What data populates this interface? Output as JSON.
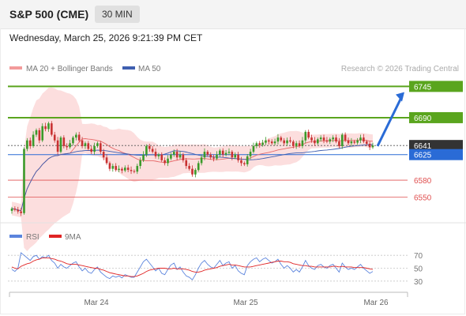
{
  "header": {
    "symbol": "S&P 500 (CME)",
    "timeframe": "30 MIN",
    "datetime": "Wednesday, March 25, 2026 9:21:39 PM CET"
  },
  "legend": {
    "ma20_bb": "MA 20 + Bollinger Bands",
    "ma50": "MA 50",
    "source": "Research © 2026 Trading Central",
    "rsi": "RSI",
    "rsi_ma": "9MA"
  },
  "colors": {
    "resistance": "#5aa51e",
    "support": "#e05050",
    "current": "#2a6bd6",
    "candle_up": "#3a9a2a",
    "candle_down": "#c83232",
    "bollinger": "#fbd3d3",
    "ma20": "#e66a6a",
    "ma50": "#3f5fb0",
    "rsi": "#5b84dd",
    "rsi_ma": "#e02424",
    "last_price_bg": "#333333"
  },
  "chart_data": {
    "type": "candlestick",
    "ylim": [
      6505,
      6765
    ],
    "price_levels": [
      {
        "label": "6745",
        "value": 6745,
        "kind": "resistance"
      },
      {
        "label": "6690",
        "value": 6690,
        "kind": "resistance"
      },
      {
        "label": "6641",
        "value": 6641,
        "kind": "last"
      },
      {
        "label": "6625",
        "value": 6625,
        "kind": "current"
      },
      {
        "label": "6580",
        "value": 6580,
        "kind": "support"
      },
      {
        "label": "6550",
        "value": 6550,
        "kind": "support"
      }
    ],
    "x_ticks": [
      "Mar 24",
      "Mar 25",
      "Mar 26"
    ],
    "arrow": {
      "from": 6640,
      "to": 6735,
      "direction": "up"
    },
    "candles_close": [
      6530,
      6528,
      6525,
      6522,
      6635,
      6650,
      6640,
      6660,
      6668,
      6650,
      6675,
      6670,
      6680,
      6660,
      6650,
      6630,
      6655,
      6640,
      6638,
      6645,
      6655,
      6660,
      6650,
      6640,
      6645,
      6635,
      6630,
      6640,
      6645,
      6630,
      6620,
      6610,
      6600,
      6605,
      6598,
      6600,
      6597,
      6602,
      6598,
      6596,
      6595,
      6605,
      6615,
      6625,
      6640,
      6635,
      6630,
      6622,
      6625,
      6615,
      6610,
      6618,
      6625,
      6630,
      6620,
      6625,
      6615,
      6605,
      6600,
      6590,
      6598,
      6610,
      6620,
      6630,
      6625,
      6620,
      6618,
      6625,
      6632,
      6625,
      6628,
      6630,
      6620,
      6625,
      6615,
      6610,
      6608,
      6622,
      6630,
      6640,
      6645,
      6642,
      6646,
      6650,
      6648,
      6645,
      6648,
      6655,
      6650,
      6645,
      6650,
      6648,
      6640,
      6645,
      6640,
      6650,
      6665,
      6655,
      6650,
      6645,
      6652,
      6655,
      6650,
      6648,
      6652,
      6655,
      6648,
      6640,
      6660,
      6650,
      6645,
      6648,
      6646,
      6650,
      6655,
      6648,
      6644,
      6638,
      6641
    ],
    "rsi": {
      "ylim": [
        20,
        80
      ],
      "levels": [
        70,
        50,
        30
      ],
      "values": [
        48,
        45,
        50,
        74,
        70,
        66,
        62,
        68,
        70,
        64,
        68,
        66,
        70,
        62,
        58,
        50,
        56,
        52,
        50,
        54,
        58,
        60,
        52,
        46,
        50,
        44,
        42,
        48,
        52,
        44,
        40,
        36,
        34,
        38,
        36,
        38,
        35,
        40,
        38,
        36,
        36,
        44,
        52,
        60,
        64,
        58,
        52,
        46,
        50,
        42,
        40,
        48,
        55,
        58,
        48,
        52,
        44,
        38,
        36,
        32,
        40,
        50,
        58,
        62,
        56,
        52,
        50,
        56,
        62,
        54,
        58,
        60,
        50,
        54,
        46,
        42,
        40,
        54,
        60,
        64,
        66,
        60,
        64,
        66,
        62,
        58,
        60,
        64,
        56,
        50,
        54,
        50,
        44,
        48,
        44,
        52,
        62,
        54,
        50,
        48,
        54,
        56,
        52,
        50,
        54,
        56,
        50,
        44,
        58,
        52,
        48,
        50,
        48,
        52,
        56,
        50,
        46,
        42,
        45
      ],
      "ma": [
        52,
        50,
        49,
        53,
        55,
        57,
        58,
        61,
        63,
        64,
        66,
        66,
        66,
        65,
        64,
        62,
        61,
        59,
        57,
        56,
        56,
        56,
        55,
        54,
        53,
        52,
        51,
        50,
        50,
        48,
        47,
        45,
        43,
        42,
        41,
        40,
        39,
        38,
        38,
        37,
        37,
        38,
        40,
        42,
        45,
        47,
        48,
        49,
        50,
        50,
        50,
        49,
        49,
        50,
        49,
        49,
        49,
        48,
        47,
        45,
        44,
        44,
        45,
        47,
        48,
        49,
        50,
        51,
        53,
        54,
        55,
        56,
        55,
        55,
        54,
        53,
        52,
        52,
        52,
        53,
        54,
        55,
        56,
        57,
        58,
        59,
        60,
        61,
        61,
        60,
        60,
        59,
        57,
        56,
        55,
        54,
        54,
        53,
        53,
        52,
        52,
        52,
        52,
        52,
        52,
        53,
        53,
        52,
        53,
        52,
        52,
        52,
        51,
        51,
        51,
        51,
        50,
        49,
        48
      ]
    }
  }
}
